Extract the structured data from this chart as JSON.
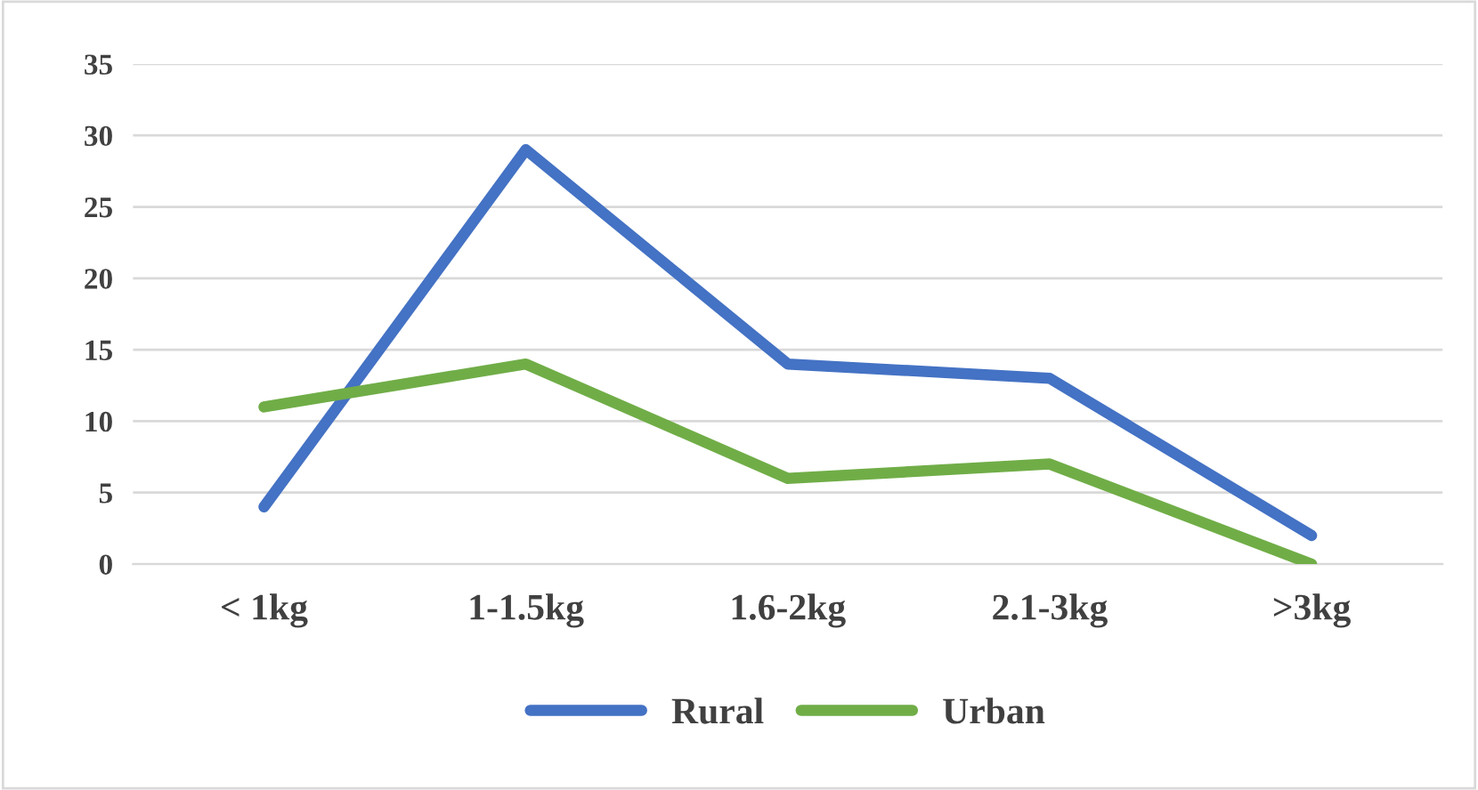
{
  "chart_data": {
    "type": "line",
    "categories": [
      "< 1kg",
      "1-1.5kg",
      "1.6-2kg",
      "2.1-3kg",
      ">3kg"
    ],
    "series": [
      {
        "name": "Rural",
        "color": "#4472c4",
        "values": [
          4,
          29,
          14,
          13,
          2
        ]
      },
      {
        "name": "Urban",
        "color": "#70ad47",
        "values": [
          11,
          14,
          6,
          7,
          0
        ]
      }
    ],
    "ylim": [
      0,
      35
    ],
    "yticks": [
      0,
      5,
      10,
      15,
      20,
      25,
      30,
      35
    ],
    "grid": "y",
    "legend": "bottom",
    "marker": "none",
    "line_style": "solid"
  }
}
